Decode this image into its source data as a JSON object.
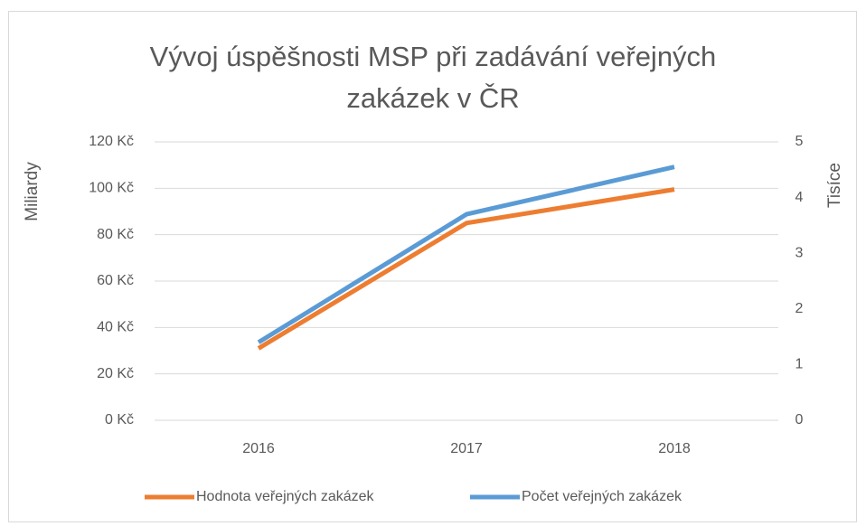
{
  "chart_data": {
    "type": "line",
    "title": "Vývoj úspěšnosti MSP při  zadávání veřejných zakázek v ČR",
    "y_label": "Miliardy",
    "y2_label": "Tisíce",
    "categories": [
      "2016",
      "2017",
      "2018"
    ],
    "series": [
      {
        "name": "Hodnota veřejných zakázek",
        "color": "#ed7d31",
        "values": [
          31,
          85,
          99.5
        ]
      },
      {
        "name": "Počet veřejných zakázek",
        "color": "#5b9bd5",
        "values": [
          1.4,
          3.7,
          4.55
        ],
        "axis": "y2"
      }
    ],
    "ylim": [
      0,
      120
    ],
    "yticks": [
      {
        "value": 0,
        "label": "0 Kč"
      },
      {
        "value": 20,
        "label": "20 Kč"
      },
      {
        "value": 40,
        "label": "40 Kč"
      },
      {
        "value": 60,
        "label": "60 Kč"
      },
      {
        "value": 80,
        "label": "80 Kč"
      },
      {
        "value": 100,
        "label": "100 Kč"
      },
      {
        "value": 120,
        "label": "120 Kč"
      }
    ],
    "y2lim": [
      0,
      5
    ],
    "y2ticks": [
      0,
      1,
      2,
      3,
      4,
      5
    ],
    "grid": true,
    "legend": "bottom"
  }
}
